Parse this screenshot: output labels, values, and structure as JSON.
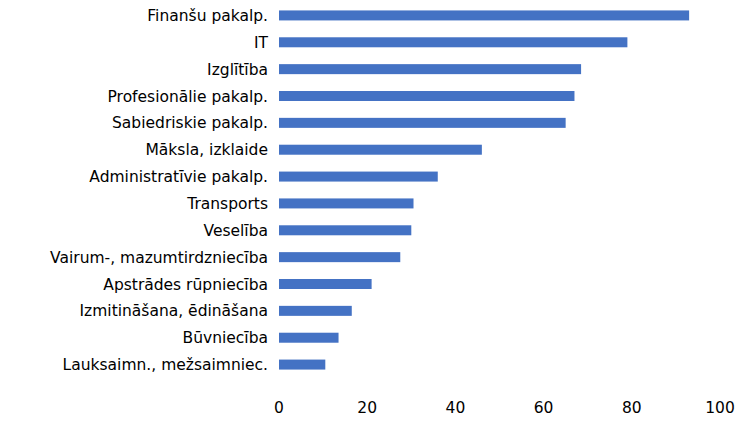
{
  "chart_data": {
    "type": "bar",
    "orientation": "horizontal",
    "categories": [
      "Finanšu pakalp.",
      "IT",
      "Izglītība",
      "Profesionālie pakalp.",
      "Sabiedriskie pakalp.",
      "Māksla, izklaide",
      "Administratīvie pakalp.",
      "Transports",
      "Veselība",
      "Vairum-, mazumtirdzniecība",
      "Apstrādes rūpniecība",
      "Izmitināšana, ēdināšana",
      "Būvniecība",
      "Lauksaimn., mežsaimniec."
    ],
    "values": [
      93,
      79,
      68.5,
      67,
      65,
      46,
      36,
      30.5,
      30,
      27.5,
      21,
      16.5,
      13.5,
      10.5
    ],
    "color": "#4472c4",
    "xlim": [
      0,
      100
    ],
    "xticks": [
      0,
      20,
      40,
      60,
      80,
      100
    ],
    "grid": false
  }
}
